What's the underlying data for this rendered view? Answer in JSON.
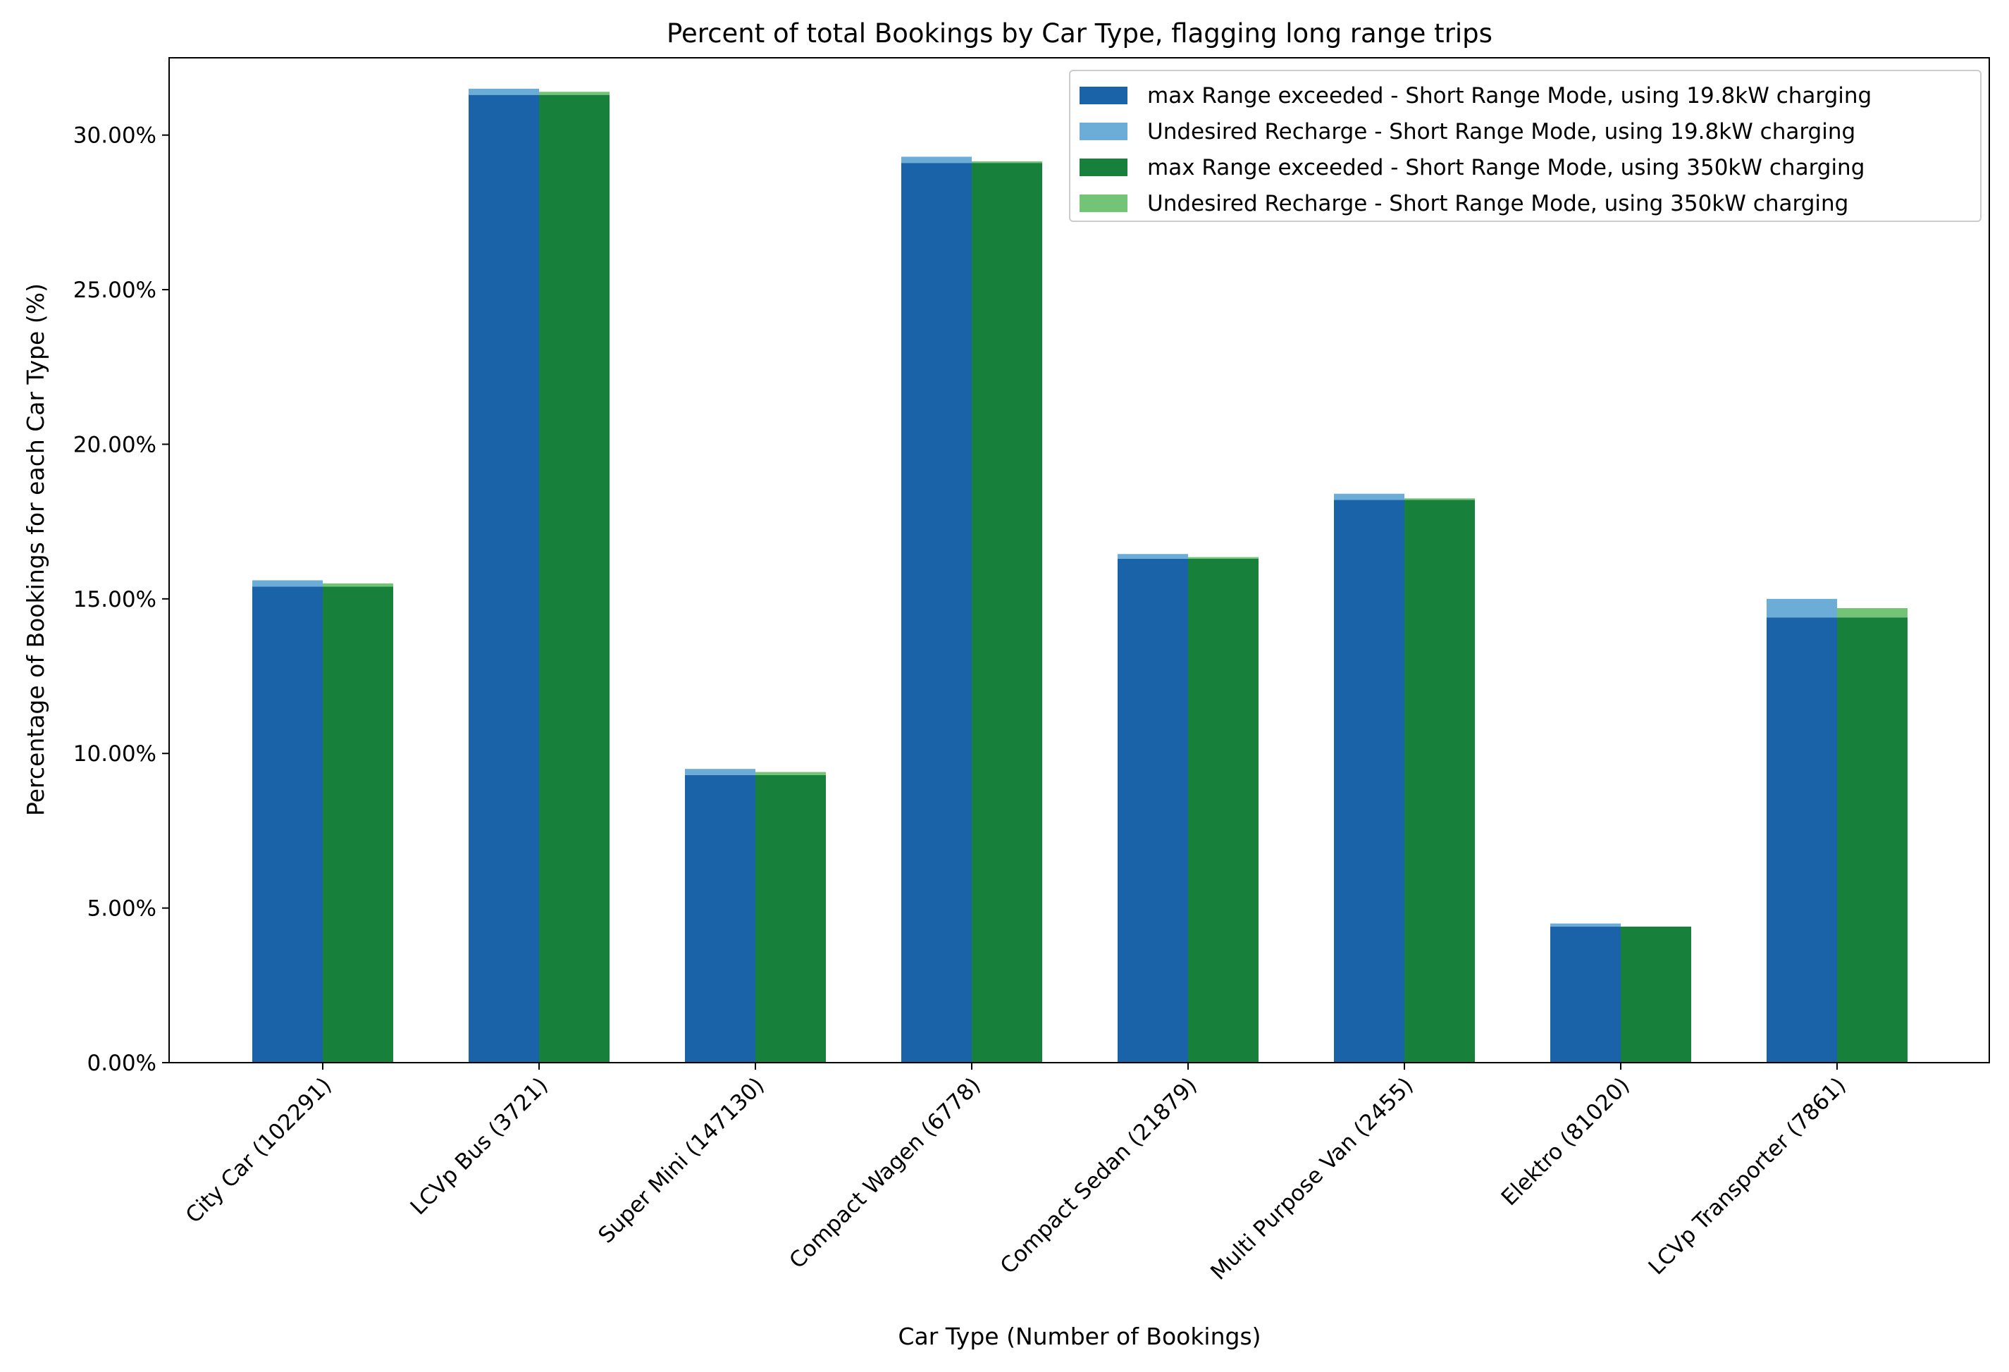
{
  "chart_data": {
    "type": "bar",
    "title": "Percent of total Bookings by Car Type, flagging long range trips",
    "xlabel": "Car Type (Number of Bookings)",
    "ylabel": "Percentage of Bookings for each Car Type (%)",
    "ylim": [
      0,
      32.5
    ],
    "yticks": [
      0,
      5,
      10,
      15,
      20,
      25,
      30
    ],
    "ytick_labels": [
      "0.00%",
      "5.00%",
      "10.00%",
      "15.00%",
      "20.00%",
      "25.00%",
      "30.00%"
    ],
    "categories": [
      "City Car (102291)",
      "LCVp Bus (3721)",
      "Super Mini (147130)",
      "Compact Wagen (6778)",
      "Compact Sedan (21879)",
      "Multi Purpose Van (2455)",
      "Elektro (81020)",
      "LCVp Transporter (7861)"
    ],
    "grid": false,
    "legend_position": "top-right",
    "bar_groups": [
      {
        "name": "19.8kW charging",
        "position": "left",
        "stack": [
          {
            "name": "max Range exceeded - Short Range Mode, using 19.8kW charging",
            "color": "#1a63a9",
            "values": [
              15.4,
              31.3,
              9.3,
              29.1,
              16.3,
              18.2,
              4.4,
              14.4
            ]
          },
          {
            "name": "Undesired Recharge - Short Range Mode, using 19.8kW charging",
            "color": "#6badd6",
            "values": [
              0.2,
              0.2,
              0.2,
              0.2,
              0.15,
              0.2,
              0.1,
              0.6
            ]
          }
        ]
      },
      {
        "name": "350kW charging",
        "position": "right",
        "stack": [
          {
            "name": "max Range exceeded - Short Range Mode, using 350kW charging",
            "color": "#17813c",
            "values": [
              15.4,
              31.3,
              9.3,
              29.1,
              16.3,
              18.2,
              4.4,
              14.4
            ]
          },
          {
            "name": "Undesired Recharge - Short Range Mode, using 350kW charging",
            "color": "#73c476",
            "values": [
              0.1,
              0.1,
              0.1,
              0.05,
              0.05,
              0.05,
              0.0,
              0.3
            ]
          }
        ]
      }
    ],
    "legend": [
      {
        "label": "max Range exceeded - Short Range Mode, using 19.8kW charging",
        "color": "#1a63a9"
      },
      {
        "label": "Undesired Recharge - Short Range Mode, using 19.8kW charging",
        "color": "#6badd6"
      },
      {
        "label": "max Range exceeded - Short Range Mode, using 350kW charging",
        "color": "#17813c"
      },
      {
        "label": "Undesired Recharge - Short Range Mode, using 350kW charging",
        "color": "#73c476"
      }
    ]
  }
}
